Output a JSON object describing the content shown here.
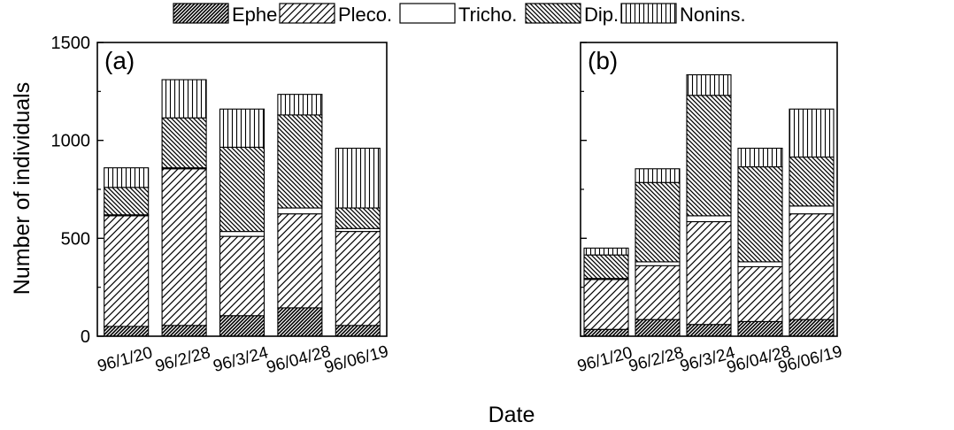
{
  "figure": {
    "ylabel": "Number of individuals",
    "xlabel": "Date"
  },
  "legend": {
    "items": [
      {
        "name": "Ephe.",
        "pattern": "dense-diag"
      },
      {
        "name": "Pleco.",
        "pattern": "wide-diag"
      },
      {
        "name": "Tricho.",
        "pattern": "blank"
      },
      {
        "name": "Dip.",
        "pattern": "back-diag"
      },
      {
        "name": "Nonins.",
        "pattern": "vertical"
      }
    ]
  },
  "chart_data": [
    {
      "type": "bar",
      "stacked": true,
      "panel_label": "(a)",
      "categories": [
        "96/1/20",
        "96/2/28",
        "96/3/24",
        "96/04/28",
        "96/06/19"
      ],
      "ylim": [
        0,
        1500
      ],
      "yticks": [
        0,
        500,
        1000,
        1500
      ],
      "ylabel": "Number of individuals",
      "series": [
        {
          "name": "Ephe.",
          "values": [
            50,
            55,
            105,
            145,
            55
          ]
        },
        {
          "name": "Pleco.",
          "values": [
            565,
            800,
            405,
            480,
            480
          ]
        },
        {
          "name": "Tricho.",
          "values": [
            5,
            5,
            25,
            30,
            15
          ]
        },
        {
          "name": "Dip.",
          "values": [
            140,
            255,
            430,
            475,
            105
          ]
        },
        {
          "name": "Nonins.",
          "values": [
            100,
            195,
            195,
            105,
            305
          ]
        }
      ]
    },
    {
      "type": "bar",
      "stacked": true,
      "panel_label": "(b)",
      "categories": [
        "96/1/20",
        "96/2/28",
        "96/3/24",
        "96/04/28",
        "96/06/19"
      ],
      "ylim": [
        0,
        1500
      ],
      "yticks": [
        0,
        500,
        1000,
        1500
      ],
      "series": [
        {
          "name": "Ephe.",
          "values": [
            35,
            85,
            60,
            75,
            85
          ]
        },
        {
          "name": "Pleco.",
          "values": [
            255,
            275,
            525,
            280,
            540
          ]
        },
        {
          "name": "Tricho.",
          "values": [
            5,
            20,
            30,
            25,
            40
          ]
        },
        {
          "name": "Dip.",
          "values": [
            120,
            405,
            615,
            485,
            250
          ]
        },
        {
          "name": "Nonins.",
          "values": [
            35,
            70,
            105,
            95,
            245
          ]
        }
      ]
    }
  ]
}
